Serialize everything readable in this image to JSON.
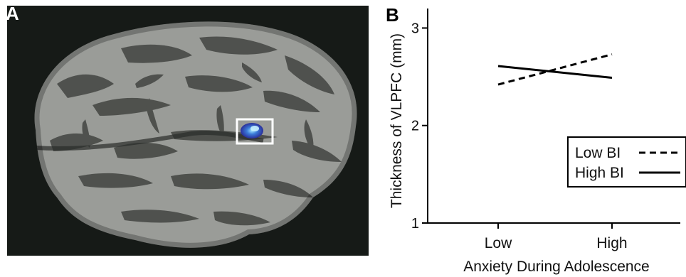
{
  "figure": {
    "panel_a": {
      "letter": "A"
    },
    "panel_b": {
      "letter": "B"
    }
  },
  "chart_data": {
    "type": "line",
    "categories": [
      "Low",
      "High"
    ],
    "xlabel": "Anxiety During Adolescence",
    "ylabel": "Thickness of VLPFC (mm)",
    "ylim": [
      1,
      3.2
    ],
    "yticks": [
      1,
      2,
      3
    ],
    "series": [
      {
        "name": "Low BI",
        "style": "dashed",
        "values": [
          2.42,
          2.73
        ]
      },
      {
        "name": "High BI",
        "style": "solid",
        "values": [
          2.61,
          2.49
        ]
      }
    ],
    "legend_position": "lower-right",
    "grid": false,
    "colors": {
      "lines": "#000000",
      "brain_light": "#9a9c98",
      "brain_dark": "#4b4d4a",
      "background": "#161a17",
      "highlight": "#3a5fd0"
    }
  }
}
